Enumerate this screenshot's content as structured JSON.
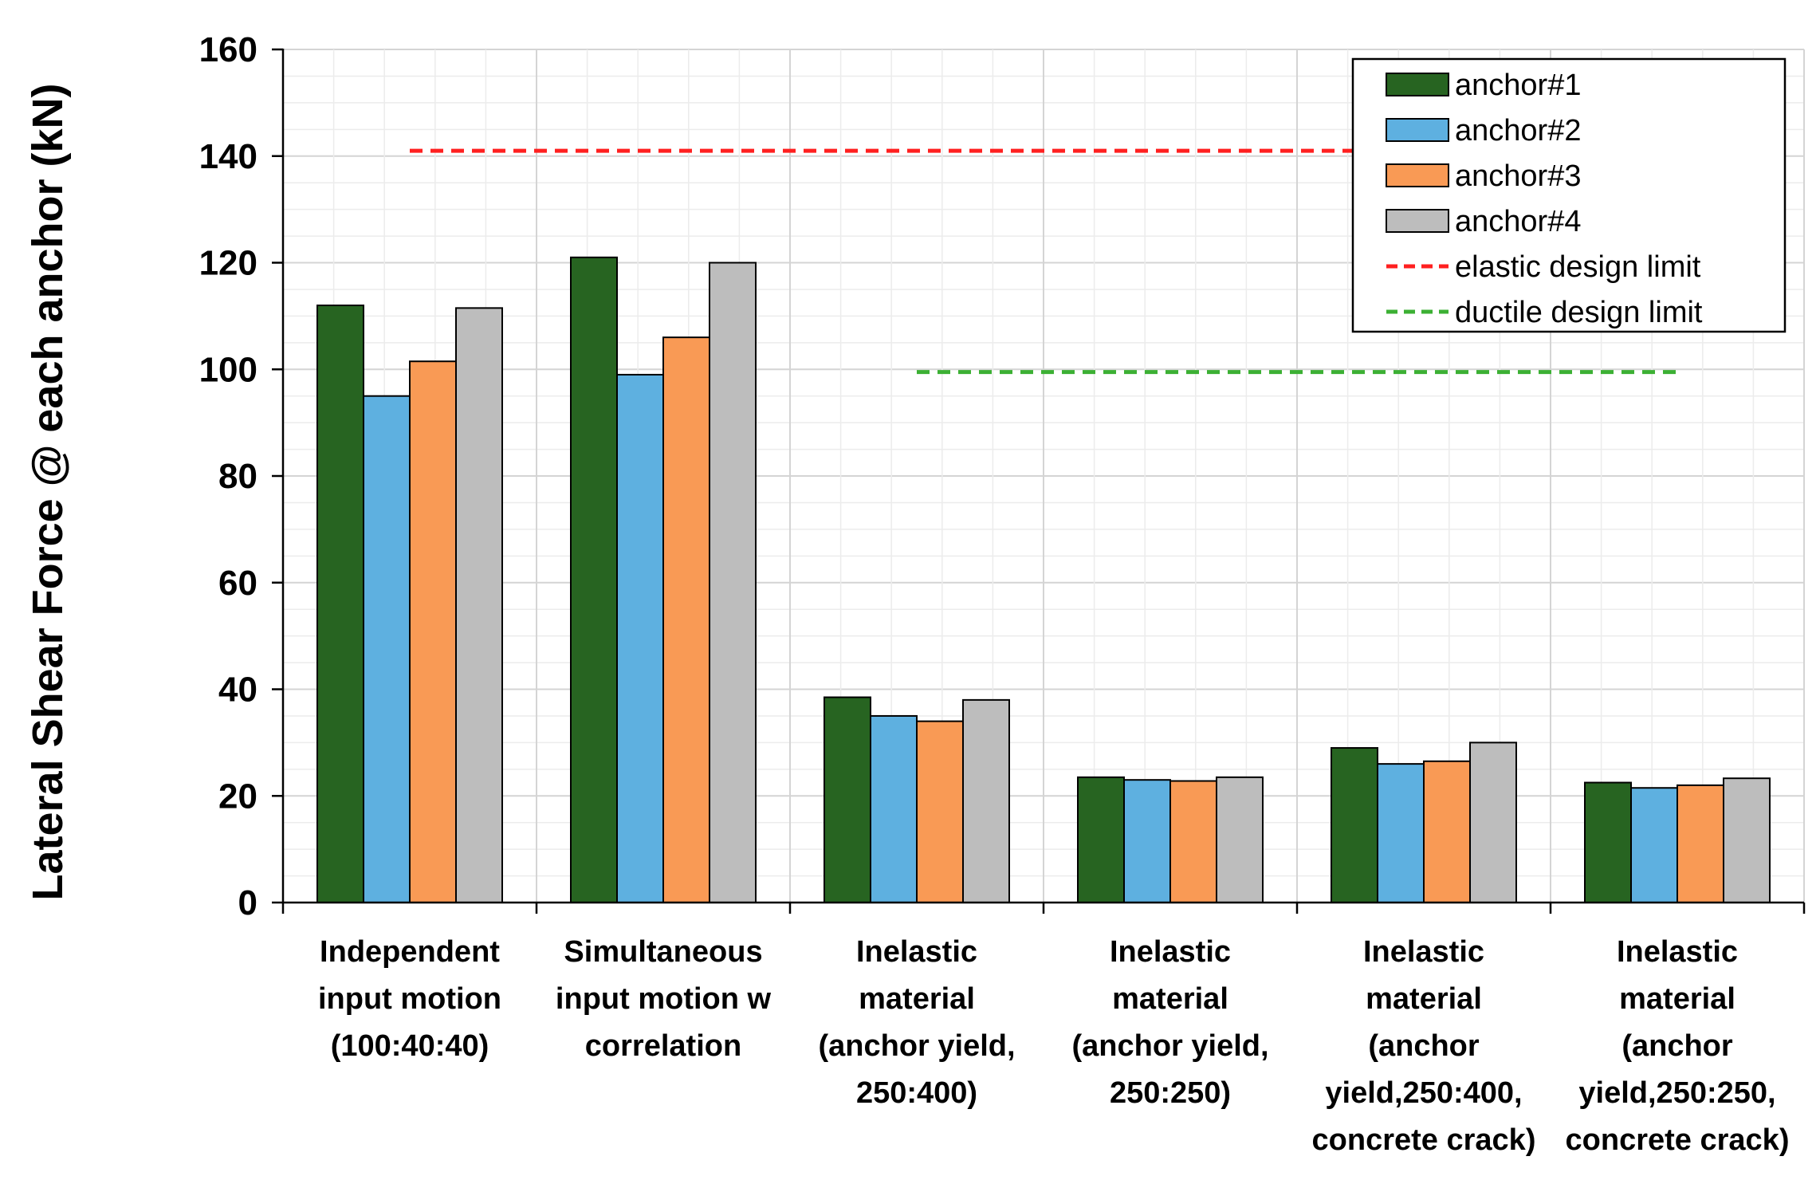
{
  "chart_data": {
    "type": "bar",
    "ylabel": "Lateral Shear Force @ each anchor (kN)",
    "xlabel": "",
    "ylim": [
      0,
      160
    ],
    "yticks": [
      0,
      20,
      40,
      60,
      80,
      100,
      120,
      140,
      160
    ],
    "grid": true,
    "legend_position": "top-right",
    "categories": [
      [
        "Independent",
        "input motion",
        "(100:40:40)"
      ],
      [
        "Simultaneous",
        "input motion w",
        "correlation"
      ],
      [
        "Inelastic",
        "material",
        "(anchor yield,",
        "250:400)"
      ],
      [
        "Inelastic",
        "material",
        "(anchor yield,",
        "250:250)"
      ],
      [
        "Inelastic",
        "material",
        "(anchor",
        "yield,250:400,",
        "concrete crack)"
      ],
      [
        "Inelastic",
        "material",
        "(anchor",
        "yield,250:250,",
        "concrete crack)"
      ]
    ],
    "series": [
      {
        "name": "anchor#1",
        "color": "#276421",
        "values": [
          112,
          121,
          38.5,
          23.5,
          29,
          22.5
        ]
      },
      {
        "name": "anchor#2",
        "color": "#5eb0e0",
        "values": [
          95,
          99,
          35,
          23,
          26,
          21.5
        ]
      },
      {
        "name": "anchor#3",
        "color": "#f99a55",
        "values": [
          101.5,
          106,
          34,
          22.8,
          26.5,
          22
        ]
      },
      {
        "name": "anchor#4",
        "color": "#bdbdbd",
        "values": [
          111.5,
          120,
          38,
          23.5,
          30,
          23.3
        ]
      }
    ],
    "reference_lines": [
      {
        "name": "elastic design limit",
        "color": "#ff2020",
        "value": 141,
        "from_category": 0,
        "to_category": 5
      },
      {
        "name": "ductile design limit",
        "color": "#3cb034",
        "value": 99.5,
        "from_category": 2,
        "to_category": 5
      }
    ]
  }
}
